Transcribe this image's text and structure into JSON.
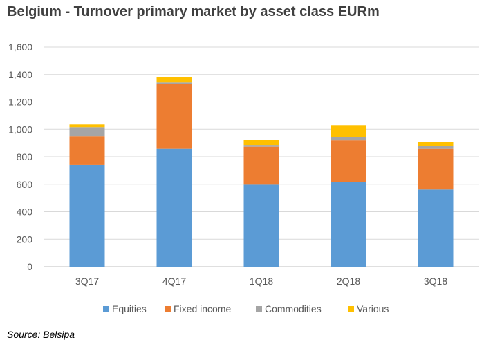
{
  "title": "Belgium - Turnover primary market by asset class EURm",
  "source": "Source: Belsipa",
  "chart_data": {
    "type": "bar",
    "stacked": true,
    "categories": [
      "3Q17",
      "4Q17",
      "1Q18",
      "2Q18",
      "3Q18"
    ],
    "series": [
      {
        "name": "Equities",
        "color": "#5b9bd5",
        "values": [
          740,
          862,
          597,
          615,
          562
        ]
      },
      {
        "name": "Fixed income",
        "color": "#ed7d31",
        "values": [
          210,
          468,
          275,
          305,
          300
        ]
      },
      {
        "name": "Commodities",
        "color": "#a5a5a5",
        "values": [
          65,
          12,
          13,
          23,
          15
        ]
      },
      {
        "name": "Various",
        "color": "#ffc000",
        "values": [
          20,
          40,
          37,
          87,
          33
        ]
      }
    ],
    "yticks": [
      "0",
      "200",
      "400",
      "600",
      "800",
      "1,000",
      "1,200",
      "1,400",
      "1,600"
    ],
    "ylim": [
      0,
      1600
    ],
    "grid": true,
    "legend_position": "bottom"
  }
}
